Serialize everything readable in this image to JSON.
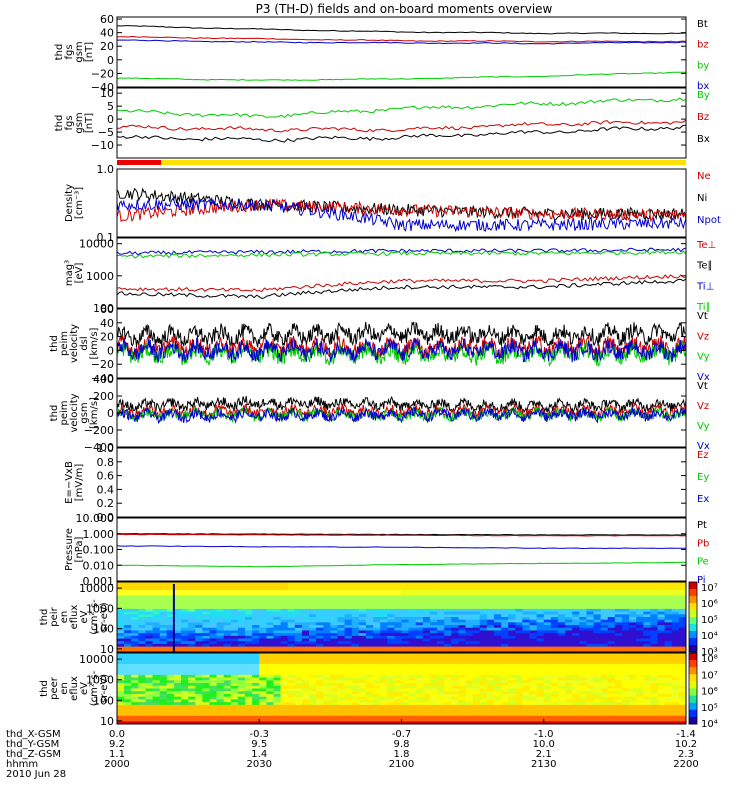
{
  "title": "P3 (TH-D) fields and on-board moments overview",
  "panels": [
    {
      "id": "fgs-gsm",
      "ylabel": [
        "thd",
        "fgs",
        "gsm",
        "[nT]"
      ],
      "ytick_labels": [
        "60",
        "40",
        "20",
        "0",
        "−20",
        "−40"
      ],
      "ytick_values": [
        60,
        40,
        20,
        0,
        -20,
        -40
      ],
      "ylim": [
        -40,
        63
      ],
      "scale": "linear",
      "legend": [
        {
          "name": "Bt",
          "color": "#000000"
        },
        {
          "name": "bz",
          "color": "#cc0000"
        },
        {
          "name": "by",
          "color": "#00cc00"
        },
        {
          "name": "bx",
          "color": "#0000cc"
        }
      ]
    },
    {
      "id": "fgs-gsm-dmpa",
      "ylabel": [
        "thd",
        "fgs",
        "gsm",
        "[nT]"
      ],
      "ytick_labels": [
        "10",
        "5",
        "0",
        "−5",
        "−10"
      ],
      "ytick_values": [
        10,
        5,
        0,
        -5,
        -10
      ],
      "ylim": [
        -15,
        12
      ],
      "scale": "linear",
      "legend": [
        {
          "name": "By",
          "color": "#00cc00"
        },
        {
          "name": "Bz",
          "color": "#cc0000"
        },
        {
          "name": "Bx",
          "color": "#000000"
        }
      ]
    },
    {
      "id": "density",
      "ylabel": [
        "Density",
        "[cm⁻³]"
      ],
      "ytick_labels": [
        "1.0",
        "0.1"
      ],
      "ytick_values": [
        1.0,
        0.1
      ],
      "ylim": [
        0.1,
        1.0
      ],
      "scale": "log",
      "legend": [
        {
          "name": "Ne",
          "color": "#cc0000"
        },
        {
          "name": "Ni",
          "color": "#000000"
        },
        {
          "name": "Npot",
          "color": "#0000cc"
        }
      ]
    },
    {
      "id": "temperature",
      "ylabel": [
        "mag³",
        "[eV]"
      ],
      "ytick_labels": [
        "10000",
        "1000",
        "100"
      ],
      "ytick_values": [
        10000,
        1000,
        100
      ],
      "ylim": [
        100,
        15000
      ],
      "scale": "log",
      "legend": [
        {
          "name": "Te⊥",
          "color": "#cc0000"
        },
        {
          "name": "Te∥",
          "color": "#000000"
        },
        {
          "name": "Ti⊥",
          "color": "#0000cc"
        },
        {
          "name": "Ti∥",
          "color": "#00cc00"
        }
      ]
    },
    {
      "id": "velocity-dsl",
      "ylabel": [
        "thd",
        "peim",
        "velocity",
        "dsl",
        "[km/s]"
      ],
      "ytick_labels": [
        "60",
        "40",
        "20",
        "0",
        "−20",
        "−40"
      ],
      "ytick_values": [
        60,
        40,
        20,
        0,
        -20,
        -40
      ],
      "ylim": [
        -40,
        60
      ],
      "scale": "linear",
      "legend": [
        {
          "name": "Vt",
          "color": "#000000"
        },
        {
          "name": "Vz",
          "color": "#cc0000"
        },
        {
          "name": "Vy",
          "color": "#00cc00"
        },
        {
          "name": "Vx",
          "color": "#0000cc"
        }
      ]
    },
    {
      "id": "velocity-gsm",
      "ylabel": [
        "thd",
        "peim",
        "velocity",
        "gsm",
        "[km/s]"
      ],
      "ytick_labels": [
        "400",
        "200",
        "0",
        "−200",
        "−400"
      ],
      "ytick_values": [
        400,
        200,
        0,
        -200,
        -400
      ],
      "ylim": [
        -400,
        400
      ],
      "scale": "linear",
      "legend": [
        {
          "name": "Vt",
          "color": "#000000"
        },
        {
          "name": "Vz",
          "color": "#cc0000"
        },
        {
          "name": "Vy",
          "color": "#00cc00"
        },
        {
          "name": "Vx",
          "color": "#0000cc"
        }
      ]
    },
    {
      "id": "efield",
      "ylabel": [
        "E=−VxB",
        "[mV/m]"
      ],
      "ytick_labels": [
        "1.0",
        "0.8",
        "0.6",
        "0.4",
        "0.2",
        "0.0"
      ],
      "ytick_values": [
        1.0,
        0.8,
        0.6,
        0.4,
        0.2,
        0.0
      ],
      "ylim": [
        0.0,
        1.0
      ],
      "scale": "linear",
      "legend": [
        {
          "name": "Ez",
          "color": "#cc0000"
        },
        {
          "name": "Ey",
          "color": "#00cc00"
        },
        {
          "name": "Ex",
          "color": "#0000cc"
        }
      ]
    },
    {
      "id": "pressure",
      "ylabel": [
        "Pressure",
        "[nPa]"
      ],
      "ytick_labels": [
        "10.000",
        "1.000",
        "0.100",
        "0.010",
        "0.001"
      ],
      "ytick_values": [
        10,
        1,
        0.1,
        0.01,
        0.001
      ],
      "ylim": [
        0.001,
        10
      ],
      "scale": "log",
      "legend": [
        {
          "name": "Pt",
          "color": "#000000"
        },
        {
          "name": "Pb",
          "color": "#cc0000"
        },
        {
          "name": "Pe",
          "color": "#00cc00"
        },
        {
          "name": "Pi",
          "color": "#0000cc"
        }
      ]
    },
    {
      "id": "peir-spec",
      "ylabel": [
        "thd",
        "peir",
        "en",
        "eflux",
        "eV",
        "(cm²-s-",
        "sr-eV)"
      ],
      "ytick_labels": [
        "10000",
        "1000",
        "100",
        "10"
      ],
      "ytick_values": [
        10000,
        1000,
        100,
        10
      ],
      "colorbar_labels": [
        "10⁷",
        "10⁶",
        "10⁵",
        "10⁴",
        "10³"
      ],
      "scale": "log"
    },
    {
      "id": "peer-spec",
      "ylabel": [
        "thd",
        "peer",
        "en",
        "eflux",
        "eV",
        "(cm²-s-",
        "sr-eV)"
      ],
      "ytick_labels": [
        "10000",
        "1000",
        "100",
        "10"
      ],
      "ytick_values": [
        10000,
        1000,
        100,
        10
      ],
      "colorbar_labels": [
        "10⁸",
        "10⁷",
        "10⁶",
        "10⁵",
        "10⁴"
      ],
      "scale": "log"
    }
  ],
  "x_axis": {
    "rows": [
      {
        "label": "thd_X-GSM",
        "values": [
          "0.0",
          "-0.3",
          "-0.7",
          "-1.0",
          "-1.4"
        ]
      },
      {
        "label": "thd_Y-GSM",
        "values": [
          "9.2",
          "9.5",
          "9.8",
          "10.0",
          "10.2"
        ]
      },
      {
        "label": "thd_Z-GSM",
        "values": [
          "1.1",
          "1.4",
          "1.8",
          "2.1",
          "2.3"
        ]
      },
      {
        "label": "hhmm",
        "values": [
          "2000",
          "2030",
          "2100",
          "2130",
          "2200"
        ]
      }
    ],
    "date": "2010 Jun 28"
  },
  "chart_data": {
    "type": "line",
    "title": "P3 (TH-D) fields and on-board moments overview",
    "x": [
      "2000",
      "2030",
      "2100",
      "2130",
      "2200"
    ],
    "xlabel": "hhmm",
    "date": "2010 Jun 28",
    "panels": [
      {
        "id": "fgs-gsm",
        "series": [
          {
            "name": "Bt",
            "values": [
              50,
              45,
              41,
              39,
              39
            ]
          },
          {
            "name": "bz",
            "values": [
              34,
              31,
              28,
              27,
              27
            ]
          },
          {
            "name": "bx",
            "values": [
              29,
              26,
              25,
              24,
              26
            ]
          },
          {
            "name": "by",
            "values": [
              -27,
              -30,
              -28,
              -24,
              -18
            ]
          }
        ]
      },
      {
        "id": "fgs-gsm-dmpa",
        "series": [
          {
            "name": "By",
            "values": [
              3,
              1,
              4,
              6,
              8
            ]
          },
          {
            "name": "Bz",
            "values": [
              -3,
              -4,
              -4,
              -2,
              -1
            ]
          },
          {
            "name": "Bx",
            "values": [
              -7,
              -8,
              -7,
              -5,
              -3
            ]
          }
        ]
      },
      {
        "id": "density",
        "series": [
          {
            "name": "Ni",
            "values": [
              0.45,
              0.3,
              0.25,
              0.22,
              0.22
            ]
          },
          {
            "name": "Ne",
            "values": [
              0.2,
              0.3,
              0.25,
              0.22,
              0.21
            ]
          },
          {
            "name": "Npot",
            "values": [
              0.3,
              0.3,
              0.15,
              0.15,
              0.16
            ]
          }
        ]
      },
      {
        "id": "temperature",
        "series": [
          {
            "name": "Ti⊥",
            "values": [
              5000,
              5500,
              6000,
              6000,
              6500
            ]
          },
          {
            "name": "Ti∥",
            "values": [
              4000,
              4500,
              5000,
              5000,
              5500
            ]
          },
          {
            "name": "Te⊥",
            "values": [
              400,
              350,
              700,
              700,
              1000
            ]
          },
          {
            "name": "Te∥",
            "values": [
              280,
              220,
              450,
              450,
              700
            ]
          }
        ]
      },
      {
        "id": "velocity-dsl",
        "series": [
          {
            "name": "Vt",
            "values": [
              20,
              22,
              25,
              22,
              25
            ]
          },
          {
            "name": "Vz",
            "values": [
              5,
              5,
              5,
              5,
              5
            ]
          },
          {
            "name": "Vy",
            "values": [
              -5,
              -5,
              -5,
              -5,
              -5
            ]
          },
          {
            "name": "Vx",
            "values": [
              0,
              0,
              0,
              0,
              0
            ]
          }
        ]
      },
      {
        "id": "velocity-gsm",
        "series": [
          {
            "name": "Vt",
            "values": [
              80,
              120,
              100,
              90,
              100
            ]
          },
          {
            "name": "Vz",
            "values": [
              20,
              20,
              20,
              20,
              20
            ]
          },
          {
            "name": "Vy",
            "values": [
              -20,
              -20,
              -20,
              -20,
              -20
            ]
          },
          {
            "name": "Vx",
            "values": [
              -30,
              -30,
              -20,
              -20,
              -20
            ]
          }
        ]
      },
      {
        "id": "pressure",
        "series": [
          {
            "name": "Pt",
            "values": [
              1.0,
              0.95,
              0.9,
              0.85,
              0.85
            ]
          },
          {
            "name": "Pb",
            "values": [
              0.9,
              0.85,
              0.8,
              0.75,
              0.75
            ]
          },
          {
            "name": "Pi",
            "values": [
              0.17,
              0.15,
              0.14,
              0.12,
              0.12
            ]
          },
          {
            "name": "Pe",
            "values": [
              0.01,
              0.008,
              0.011,
              0.013,
              0.015
            ]
          }
        ]
      }
    ]
  }
}
